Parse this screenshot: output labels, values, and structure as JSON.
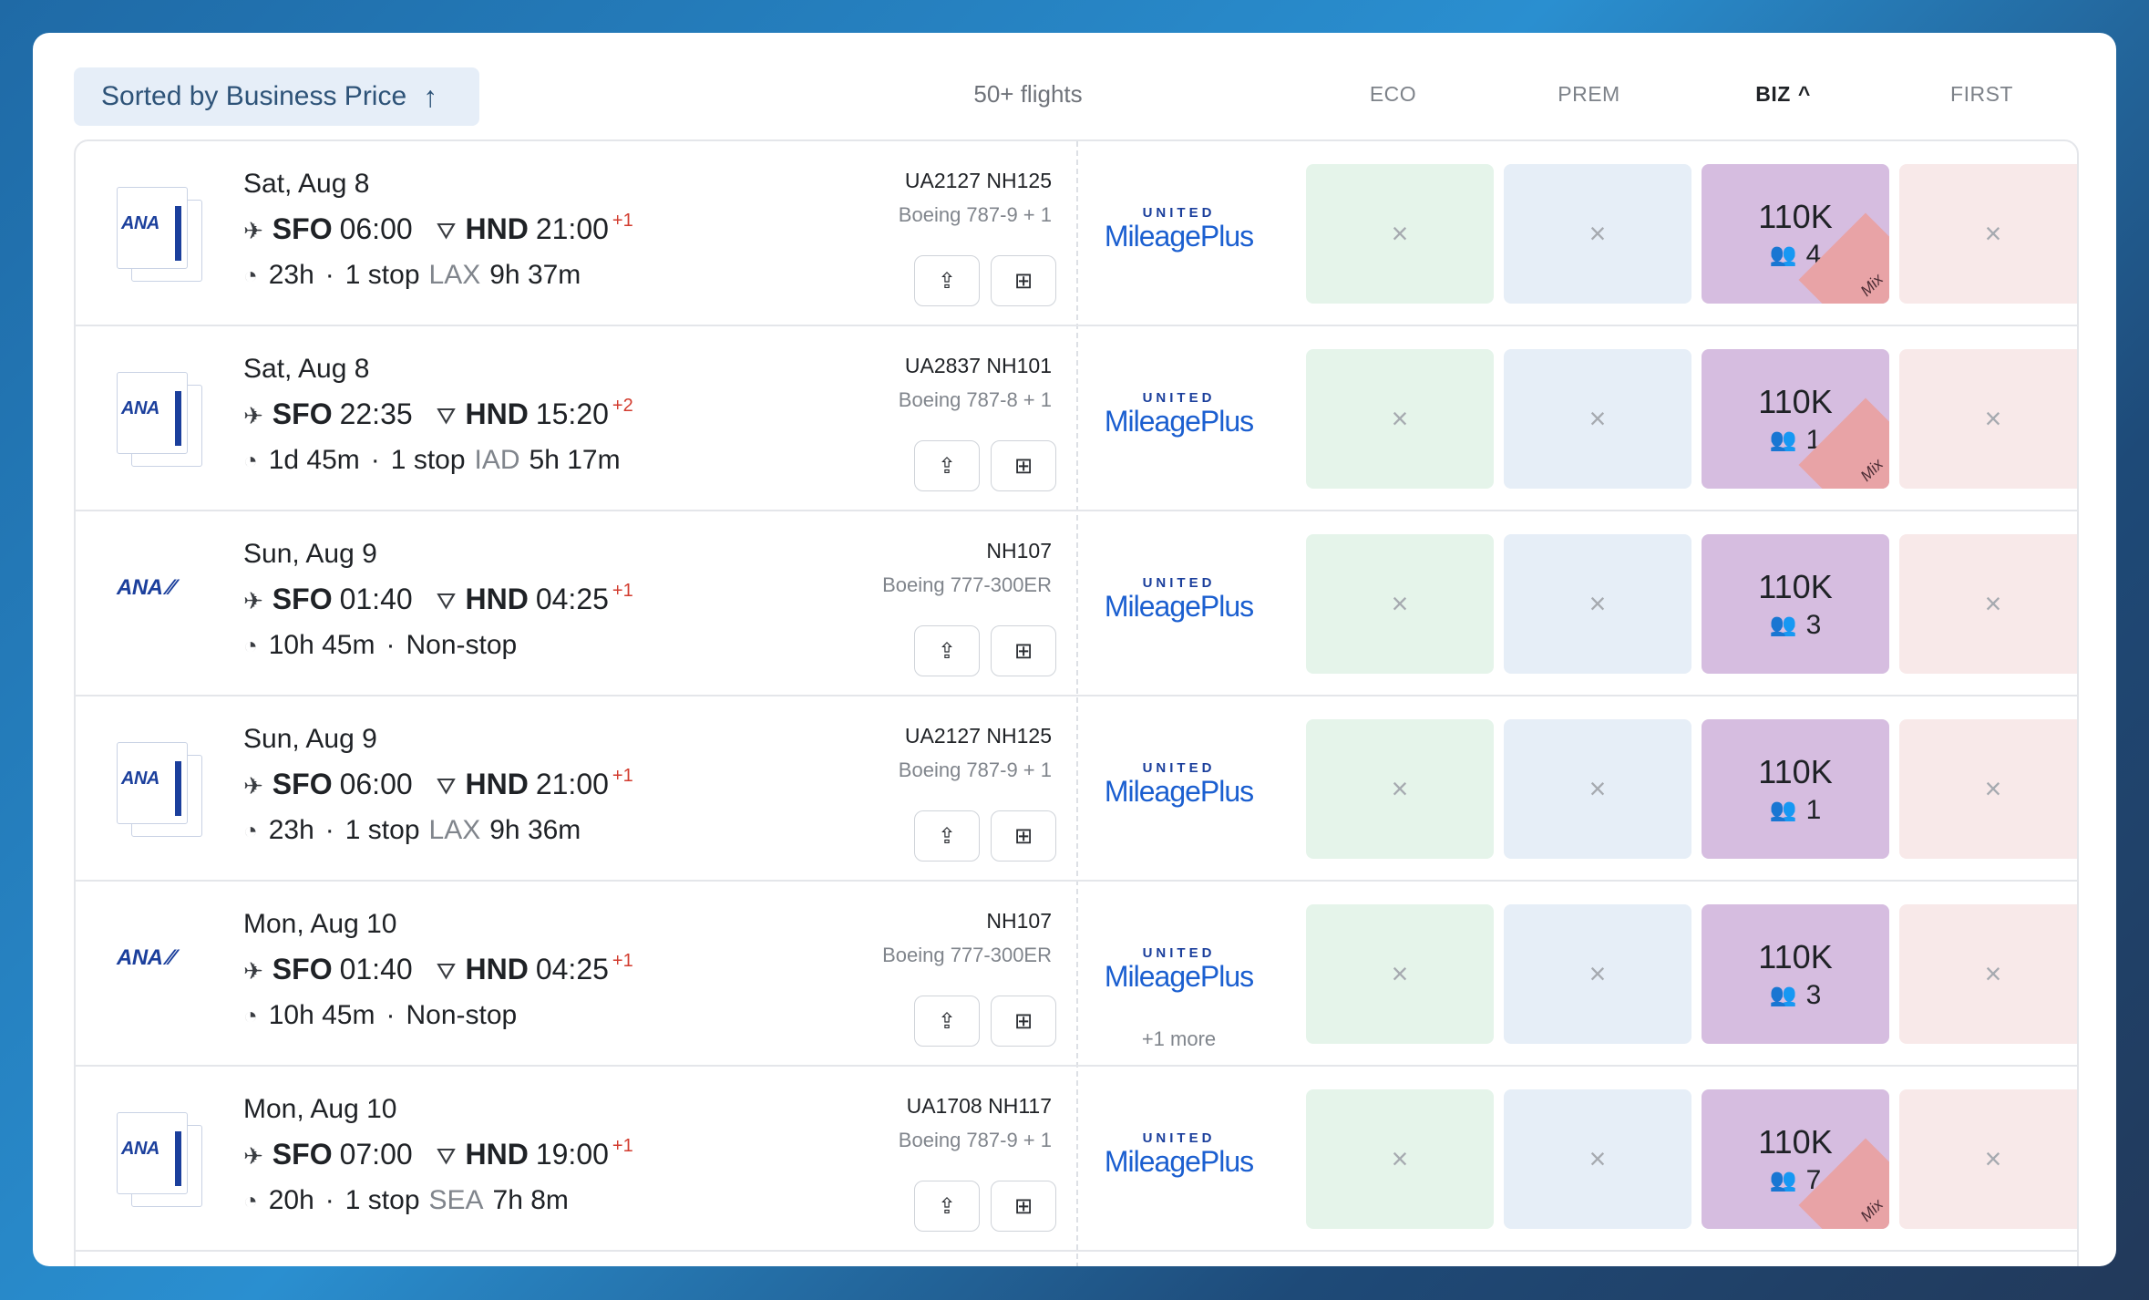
{
  "header": {
    "sort_label": "Sorted by Business Price",
    "sort_arrow": "↑",
    "flight_count": "50+ flights",
    "columns": [
      "ECO",
      "PREM",
      "BIZ",
      "FIRST"
    ],
    "active_column_chevron": "^"
  },
  "colors": {
    "eco": "#e5f4ea",
    "prem": "#e6eef7",
    "biz": "#d6bde0",
    "first": "#f8e9e9",
    "mix": "#e8a3a6",
    "next_day": "#d23b2e"
  },
  "icons": {
    "takeoff": "plane-takeoff-icon",
    "landing": "plane-landing-icon",
    "duration": "clock-icon",
    "share": "share-icon",
    "add": "add-icon",
    "unavailable": "x-icon",
    "seats": "people-icon"
  },
  "flights": [
    {
      "date": "Sat, Aug 8",
      "origin": "SFO",
      "dep": "06:00",
      "dest": "HND",
      "arr": "21:00",
      "day_offset": "+1",
      "duration": "23h",
      "stops": "1 stop",
      "layover_airport": "LAX",
      "layover": "9h 37m",
      "flight_numbers": "UA2127  NH125",
      "aircraft": "Boeing 787-9 + 1",
      "program_top": "UNITED",
      "program_name": "MileagePlus",
      "more": "",
      "eco": "×",
      "prem": "×",
      "biz_price": "110K",
      "biz_seats": "4",
      "biz_mix": "Mix",
      "first": "×"
    },
    {
      "date": "Sat, Aug 8",
      "origin": "SFO",
      "dep": "22:35",
      "dest": "HND",
      "arr": "15:20",
      "day_offset": "+2",
      "duration": "1d 45m",
      "stops": "1 stop",
      "layover_airport": "IAD",
      "layover": "5h 17m",
      "flight_numbers": "UA2837  NH101",
      "aircraft": "Boeing 787-8 + 1",
      "program_top": "UNITED",
      "program_name": "MileagePlus",
      "more": "",
      "eco": "×",
      "prem": "×",
      "biz_price": "110K",
      "biz_seats": "1",
      "biz_mix": "Mix",
      "first": "×"
    },
    {
      "date": "Sun, Aug 9",
      "origin": "SFO",
      "dep": "01:40",
      "dest": "HND",
      "arr": "04:25",
      "day_offset": "+1",
      "duration": "10h 45m",
      "stops": "Non-stop",
      "layover_airport": "",
      "layover": "",
      "flight_numbers": "NH107",
      "aircraft": "Boeing 777-300ER",
      "program_top": "UNITED",
      "program_name": "MileagePlus",
      "more": "",
      "eco": "×",
      "prem": "×",
      "biz_price": "110K",
      "biz_seats": "3",
      "biz_mix": "",
      "first": "×"
    },
    {
      "date": "Sun, Aug 9",
      "origin": "SFO",
      "dep": "06:00",
      "dest": "HND",
      "arr": "21:00",
      "day_offset": "+1",
      "duration": "23h",
      "stops": "1 stop",
      "layover_airport": "LAX",
      "layover": "9h 36m",
      "flight_numbers": "UA2127  NH125",
      "aircraft": "Boeing 787-9 + 1",
      "program_top": "UNITED",
      "program_name": "MileagePlus",
      "more": "",
      "eco": "×",
      "prem": "×",
      "biz_price": "110K",
      "biz_seats": "1",
      "biz_mix": "",
      "first": "×"
    },
    {
      "date": "Mon, Aug 10",
      "origin": "SFO",
      "dep": "01:40",
      "dest": "HND",
      "arr": "04:25",
      "day_offset": "+1",
      "duration": "10h 45m",
      "stops": "Non-stop",
      "layover_airport": "",
      "layover": "",
      "flight_numbers": "NH107",
      "aircraft": "Boeing 777-300ER",
      "program_top": "UNITED",
      "program_name": "MileagePlus",
      "more": "+1 more",
      "eco": "×",
      "prem": "×",
      "biz_price": "110K",
      "biz_seats": "3",
      "biz_mix": "",
      "first": "×"
    },
    {
      "date": "Mon, Aug 10",
      "origin": "SFO",
      "dep": "07:00",
      "dest": "HND",
      "arr": "19:00",
      "day_offset": "+1",
      "duration": "20h",
      "stops": "1 stop",
      "layover_airport": "SEA",
      "layover": "7h 8m",
      "flight_numbers": "UA1708  NH117",
      "aircraft": "Boeing 787-9 + 1",
      "program_top": "UNITED",
      "program_name": "MileagePlus",
      "more": "",
      "eco": "×",
      "prem": "×",
      "biz_price": "110K",
      "biz_seats": "7",
      "biz_mix": "Mix",
      "first": "×"
    }
  ],
  "airline_logo": {
    "text": "ANA"
  }
}
